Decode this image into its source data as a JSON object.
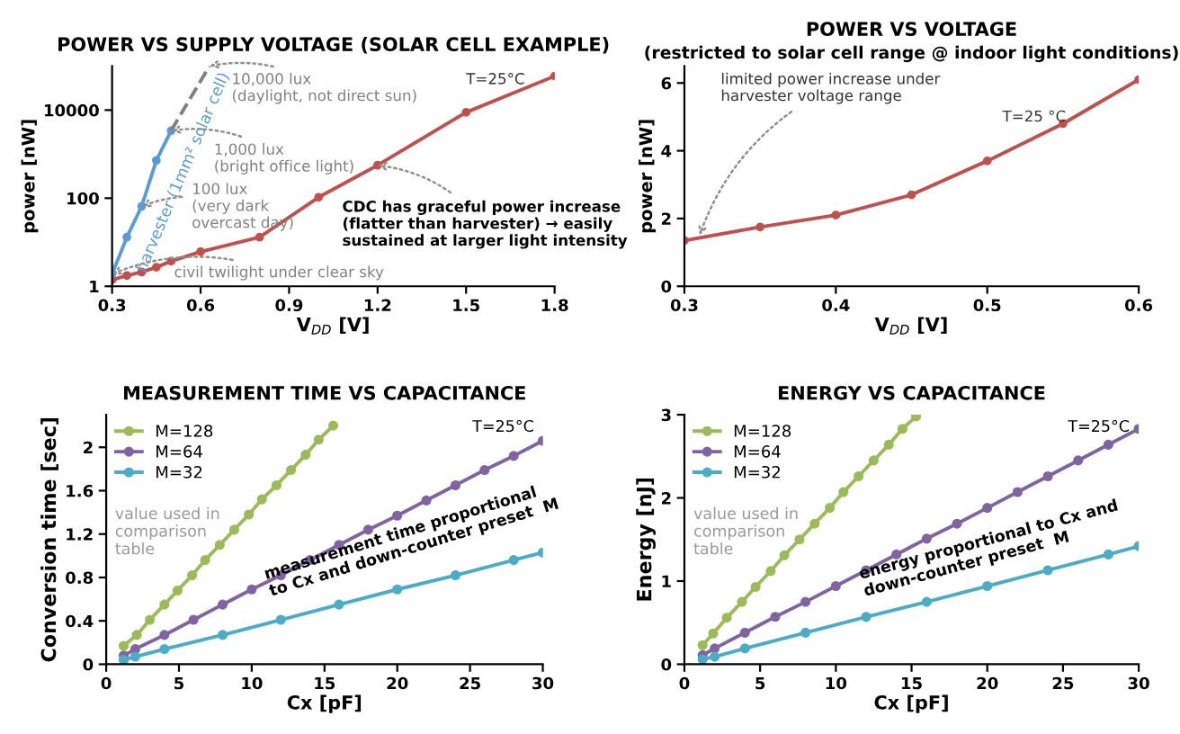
{
  "chart_data": [
    {
      "type": "line",
      "title": "POWER VS SUPPLY VOLTAGE (SOLAR CELL EXAMPLE)",
      "xlabel": "V$_{DD}$ [V]",
      "ylabel": "power [nW]",
      "log": "y",
      "xlim": [
        0.3,
        1.8
      ],
      "xticks": [
        0.3,
        0.6,
        0.9,
        1.2,
        1.5,
        1.8
      ],
      "ylim": [
        1,
        100000
      ],
      "yticks": [
        1,
        100,
        10000
      ],
      "marker": "circle",
      "legend": false,
      "grid": false,
      "series": [
        {
          "color": "#c0504d",
          "x": [
            0.3,
            0.35,
            0.4,
            0.45,
            0.5,
            0.6,
            0.8,
            1.0,
            1.2,
            1.5,
            1.8
          ],
          "values": [
            1.4,
            1.75,
            2.1,
            2.7,
            3.7,
            6.1,
            13,
            105,
            560,
            8900,
            59000
          ]
        },
        {
          "name": "harvester (1mm² solar cell)",
          "color": "#5b9bd5",
          "x": [
            0.3,
            0.35,
            0.4,
            0.45,
            0.5
          ],
          "values": [
            1.9,
            13,
            65,
            720,
            3400
          ]
        },
        {
          "color": "#808080",
          "line_style": "dashed",
          "marker": "none",
          "x": [
            0.5,
            0.63
          ],
          "values": [
            3400,
            100000
          ]
        }
      ],
      "annotations": [
        "T=25°C",
        {
          "text": "10,000 lux\n(daylight, not direct sun)",
          "x": 0.63,
          "y": 100000
        },
        {
          "text": "1,000 lux\n(bright office light)",
          "x": 0.5,
          "y": 3400
        },
        {
          "text": "100 lux\n(very dark\novercast day)",
          "x": 0.4,
          "y": 65
        },
        {
          "text": "civil twilight under clear sky",
          "x": 0.3,
          "y": 1.9
        },
        {
          "text": "CDC has graceful power increase\n(flatter than harvester) → easily\nsustained at larger light intensity",
          "x": 1.2,
          "y": 560
        }
      ]
    },
    {
      "type": "line",
      "title": "POWER VS VOLTAGE",
      "subtitle": "(restricted to solar cell range @ indoor light conditions)",
      "xlabel": "V$_{DD}$ [V]",
      "ylabel": "power [nW]",
      "xlim": [
        0.3,
        0.6
      ],
      "xticks": [
        0.3,
        0.4,
        0.5,
        0.6
      ],
      "ylim": [
        0,
        6.5
      ],
      "yticks": [
        0,
        2,
        4,
        6
      ],
      "marker": "circle",
      "legend": false,
      "grid": false,
      "series": [
        {
          "color": "#c0504d",
          "x": [
            0.3,
            0.35,
            0.4,
            0.45,
            0.5,
            0.55,
            0.6
          ],
          "values": [
            1.35,
            1.75,
            2.1,
            2.7,
            3.7,
            4.8,
            6.1
          ]
        }
      ],
      "annotations": [
        "T=25 °C",
        {
          "text": "limited power increase under\nharvester voltage range",
          "x": 0.31,
          "y": 1.5
        }
      ]
    },
    {
      "type": "line",
      "title": "MEASUREMENT TIME VS CAPACITANCE",
      "xlabel": "Cx [pF]",
      "ylabel": "Conversion time [sec]",
      "xlim": [
        0,
        30
      ],
      "xticks": [
        0,
        5,
        10,
        15,
        20,
        25,
        30
      ],
      "ylim": [
        0,
        2.3
      ],
      "yticks": [
        0,
        0.4,
        0.8,
        1.2,
        1.6,
        2
      ],
      "marker": "circle",
      "legend": "top left",
      "grid": false,
      "series": [
        {
          "name": "M=128",
          "color": "#9bbb59",
          "x": [
            1.2,
            2.1,
            3.0,
            4.0,
            4.9,
            5.9,
            6.8,
            7.8,
            8.8,
            9.8,
            10.7,
            11.7,
            12.7,
            13.7,
            14.6,
            15.6
          ],
          "values": [
            0.17,
            0.27,
            0.41,
            0.55,
            0.68,
            0.82,
            0.96,
            1.1,
            1.24,
            1.38,
            1.52,
            1.65,
            1.79,
            1.93,
            2.07,
            2.2
          ]
        },
        {
          "name": "M=64",
          "color": "#8064a2",
          "x": [
            1.2,
            2,
            4,
            6,
            8,
            10,
            12,
            14,
            16,
            18,
            20,
            22,
            24,
            26,
            28,
            30
          ],
          "values": [
            0.08,
            0.14,
            0.27,
            0.41,
            0.55,
            0.69,
            0.82,
            0.96,
            1.1,
            1.24,
            1.37,
            1.51,
            1.65,
            1.79,
            1.92,
            2.06
          ]
        },
        {
          "name": "M=32",
          "color": "#4bacc6",
          "x": [
            1.2,
            2,
            4,
            8,
            12,
            16,
            20,
            24,
            28,
            30
          ],
          "values": [
            0.04,
            0.07,
            0.14,
            0.27,
            0.41,
            0.55,
            0.69,
            0.82,
            0.96,
            1.03
          ]
        }
      ],
      "annotations": [
        "T=25°C",
        "value used in\ncomparison\ntable",
        "measurement time proportional\nto Cx and down-counter preset  M"
      ]
    },
    {
      "type": "line",
      "title": "ENERGY VS CAPACITANCE",
      "xlabel": "Cx [pF]",
      "ylabel": "Energy [nJ]",
      "xlim": [
        0,
        30
      ],
      "xticks": [
        0,
        5,
        10,
        15,
        20,
        25,
        30
      ],
      "ylim": [
        0,
        3
      ],
      "yticks": [
        0,
        1,
        2,
        3
      ],
      "marker": "circle",
      "legend": "top left",
      "grid": false,
      "series": [
        {
          "name": "M=128",
          "color": "#9bbb59",
          "x": [
            1.2,
            1.9,
            2.8,
            3.8,
            4.7,
            5.7,
            6.6,
            7.6,
            8.6,
            9.6,
            10.5,
            11.5,
            12.5,
            13.5,
            14.4,
            15.3
          ],
          "values": [
            0.23,
            0.37,
            0.56,
            0.75,
            0.93,
            1.12,
            1.31,
            1.5,
            1.69,
            1.88,
            2.07,
            2.26,
            2.45,
            2.64,
            2.83,
            2.98
          ]
        },
        {
          "name": "M=64",
          "color": "#8064a2",
          "x": [
            1.2,
            2,
            4,
            6,
            8,
            10,
            12,
            14,
            16,
            18,
            20,
            22,
            24,
            26,
            28,
            30
          ],
          "values": [
            0.11,
            0.19,
            0.38,
            0.57,
            0.75,
            0.94,
            1.13,
            1.32,
            1.51,
            1.69,
            1.88,
            2.07,
            2.26,
            2.45,
            2.64,
            2.83
          ]
        },
        {
          "name": "M=32",
          "color": "#4bacc6",
          "x": [
            1.2,
            2,
            4,
            8,
            12,
            16,
            20,
            24,
            28,
            30
          ],
          "values": [
            0.06,
            0.09,
            0.19,
            0.38,
            0.57,
            0.75,
            0.94,
            1.13,
            1.32,
            1.42
          ]
        }
      ],
      "annotations": [
        "T=25°C",
        "value used in\ncomparison\ntable",
        "energy proportional to Cx and\ndown-counter preset  M"
      ]
    }
  ]
}
